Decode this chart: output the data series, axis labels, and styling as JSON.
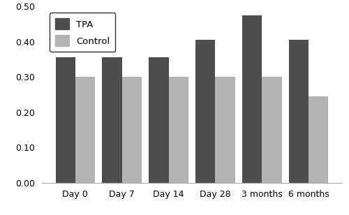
{
  "categories": [
    "Day 0",
    "Day 7",
    "Day 14",
    "Day 28",
    "3 months",
    "6 months"
  ],
  "tpa_values": [
    0.355,
    0.355,
    0.355,
    0.405,
    0.475,
    0.405
  ],
  "control_values": [
    0.3,
    0.3,
    0.3,
    0.3,
    0.3,
    0.245
  ],
  "tpa_color": "#4d4d4d",
  "control_color": "#b3b3b3",
  "ylim": [
    0.0,
    0.5
  ],
  "yticks": [
    0.0,
    0.1,
    0.2,
    0.3,
    0.4,
    0.5
  ],
  "bar_width": 0.42,
  "legend_labels": [
    "TPA",
    "Control"
  ],
  "background_color": "#ffffff",
  "figsize": [
    5.0,
    3.08
  ],
  "dpi": 100
}
